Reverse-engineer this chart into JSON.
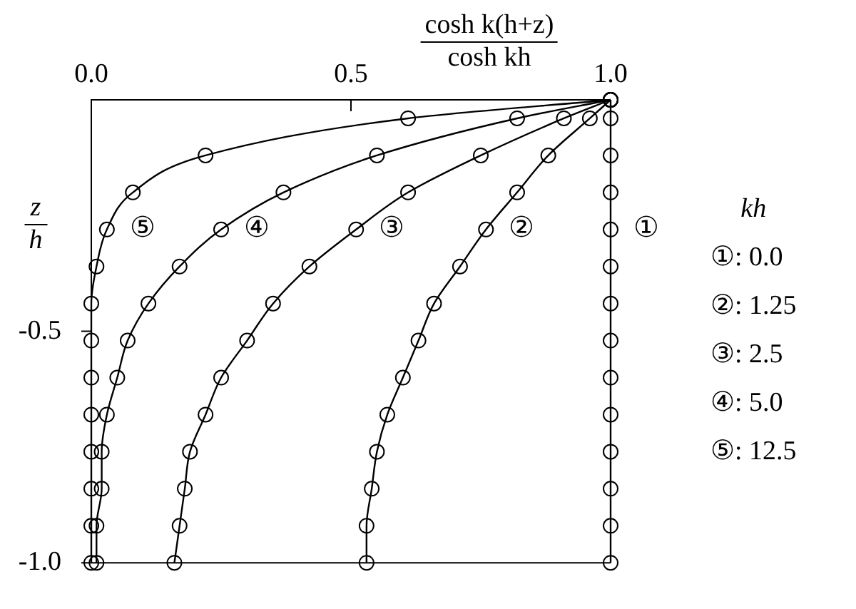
{
  "chart_data": {
    "type": "line",
    "xlabel": "cosh k(h+z)\ncosh kh",
    "ylabel": "z\nh",
    "legend_title": "kh",
    "series": [
      {
        "name": "①: 0.0",
        "color": "#000000",
        "x": [
          1,
          1,
          1,
          1,
          1,
          1,
          1,
          1,
          1,
          1,
          1,
          1,
          1,
          1
        ],
        "values": [
          0,
          -0.04,
          -0.12,
          -0.2,
          -0.28,
          -0.36,
          -0.44,
          -0.52,
          -0.6,
          -0.68,
          -0.76,
          -0.84,
          -0.92,
          -1
        ]
      },
      {
        "name": "②: 1.25",
        "color": "#000000",
        "x": [
          1,
          0.96,
          0.88,
          0.82,
          0.76,
          0.71,
          0.66,
          0.63,
          0.6,
          0.57,
          0.55,
          0.54,
          0.53,
          0.53
        ],
        "values": [
          0,
          -0.04,
          -0.12,
          -0.2,
          -0.28,
          -0.36,
          -0.44,
          -0.52,
          -0.6,
          -0.68,
          -0.76,
          -0.84,
          -0.92,
          -1
        ]
      },
      {
        "name": "③: 2.5",
        "color": "#000000",
        "x": [
          1,
          0.91,
          0.75,
          0.61,
          0.51,
          0.42,
          0.35,
          0.3,
          0.25,
          0.22,
          0.19,
          0.18,
          0.17,
          0.16
        ],
        "values": [
          0,
          -0.04,
          -0.12,
          -0.2,
          -0.28,
          -0.36,
          -0.44,
          -0.52,
          -0.6,
          -0.68,
          -0.76,
          -0.84,
          -0.92,
          -1
        ]
      },
      {
        "name": "④: 5.0",
        "color": "#000000",
        "x": [
          1,
          0.82,
          0.55,
          0.37,
          0.25,
          0.17,
          0.11,
          0.07,
          0.05,
          0.03,
          0.02,
          0.02,
          0.01,
          0.01
        ],
        "values": [
          0,
          -0.04,
          -0.12,
          -0.2,
          -0.28,
          -0.36,
          -0.44,
          -0.52,
          -0.6,
          -0.68,
          -0.76,
          -0.84,
          -0.92,
          -1
        ]
      },
      {
        "name": "⑤: 12.5",
        "color": "#000000",
        "x": [
          1,
          0.61,
          0.22,
          0.08,
          0.03,
          0.01,
          0,
          0,
          0,
          0,
          0,
          0,
          0,
          0
        ],
        "values": [
          0,
          -0.04,
          -0.12,
          -0.2,
          -0.28,
          -0.36,
          -0.44,
          -0.52,
          -0.6,
          -0.68,
          -0.76,
          -0.84,
          -0.92,
          -1
        ]
      }
    ],
    "xlim": [
      0,
      1
    ],
    "ylim": [
      -1,
      0
    ],
    "xticks": [
      {
        "value": 0,
        "label": "0.0"
      },
      0.5,
      {
        "value": 1,
        "label": "1.0"
      }
    ],
    "yticks": [
      -0.5,
      {
        "value": -1,
        "label": "-1.0"
      }
    ],
    "grid": false,
    "legend": "right",
    "marker": "circle",
    "line_style": "solid",
    "annotations": [
      {
        "text": "①",
        "x": 1,
        "y": -0.28
      },
      {
        "text": "②",
        "x": 0.76,
        "y": -0.28
      },
      {
        "text": "③",
        "x": 0.51,
        "y": -0.28
      },
      {
        "text": "④",
        "x": 0.25,
        "y": -0.28
      },
      {
        "text": "⑤",
        "x": 0.03,
        "y": -0.28
      }
    ]
  }
}
